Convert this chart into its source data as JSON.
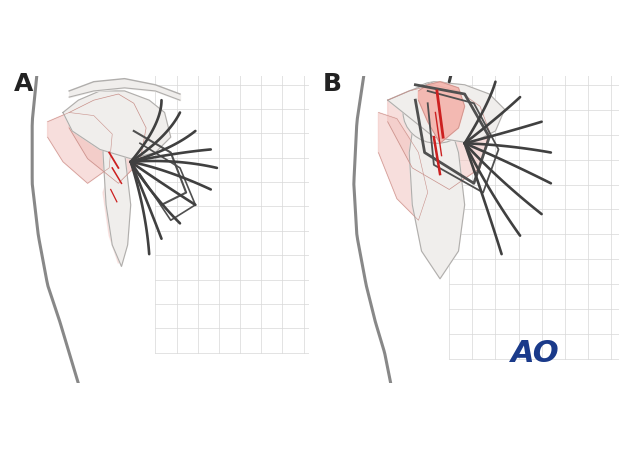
{
  "title": "",
  "background_color": "#ffffff",
  "label_A": "A",
  "label_B": "B",
  "ao_text": "AO",
  "ao_color": "#1a3a8a",
  "label_fontsize": 18,
  "ao_fontsize": 22,
  "fig_width": 6.2,
  "fig_height": 4.59,
  "dpi": 100,
  "bone_color": "#f0eeec",
  "bone_edge_color": "#b0aeac",
  "muscle_fill_color": "#f2c4c0",
  "muscle_edge_color": "#c8908a",
  "dark_line_color": "#404040",
  "red_line_color": "#cc2020",
  "body_outline_color": "#888888",
  "retractor_color": "#505050",
  "grid_color": "#d8d8d8"
}
